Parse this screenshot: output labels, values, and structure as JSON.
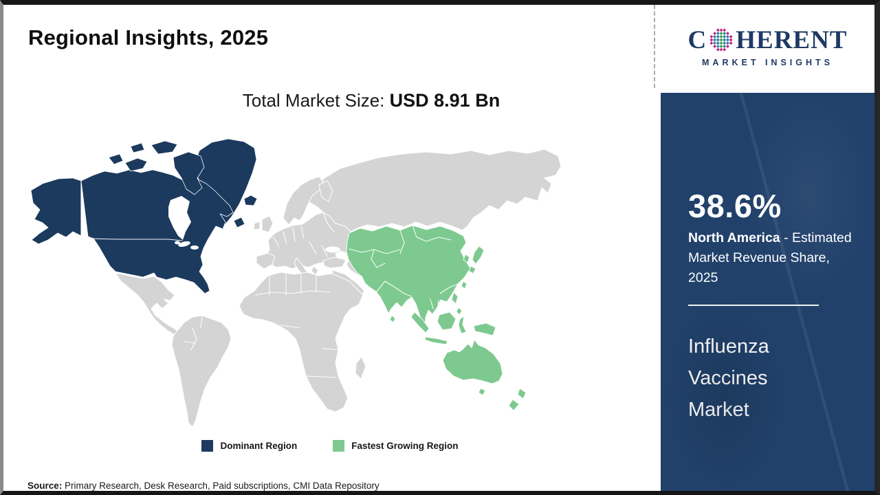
{
  "page": {
    "title": "Regional Insights, 2025",
    "subtitle_label": "Total Market Size: ",
    "subtitle_value": "USD 8.91 Bn",
    "source_label": "Source:",
    "source_text": " Primary Research, Desk Research, Paid subscriptions, CMI Data Repository"
  },
  "logo": {
    "word_start": "C",
    "word_end": "HERENT",
    "tagline": "MARKET INSIGHTS",
    "text_color": "#1e3a64",
    "dot_colors": {
      "center": "#3f9e47",
      "inner": "#2f7fa3",
      "outer": "#c2267e"
    }
  },
  "sidebar": {
    "bg_color": "#21416b",
    "share_value": "38.6%",
    "region_name": "North America",
    "region_desc": " - Estimated Market Revenue Share, 2025",
    "market_name": "Influenza Vaccines Market"
  },
  "legend": {
    "items": [
      {
        "label": "Dominant Region",
        "color": "#1f3a60"
      },
      {
        "label": "Fastest Growing Region",
        "color": "#7dc98f"
      }
    ]
  },
  "map": {
    "colors": {
      "dominant": "#1c3a5e",
      "fastest": "#7dc98f",
      "other": "#d4d4d4",
      "water": "#ffffff"
    },
    "dominant_regions": [
      "United States",
      "Canada",
      "Alaska",
      "Greenland",
      "Iceland"
    ],
    "fastest_growing_regions": [
      "Central Asia",
      "China",
      "Mongolia",
      "India",
      "Southeast Asia",
      "Japan",
      "South Korea",
      "Indonesia",
      "Philippines",
      "Papua New Guinea",
      "Australia",
      "New Zealand"
    ],
    "other_regions": [
      "Mexico",
      "Central America",
      "South America",
      "Europe",
      "Russia",
      "Middle East",
      "Africa"
    ]
  }
}
